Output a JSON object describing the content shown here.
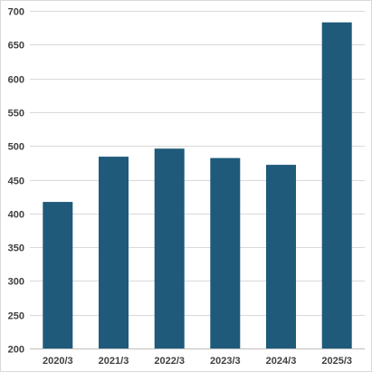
{
  "chart_data": {
    "type": "bar",
    "categories": [
      "2020/3",
      "2021/3",
      "2022/3",
      "2023/3",
      "2024/3",
      "2025/3"
    ],
    "values": [
      417,
      484,
      496,
      482,
      472,
      683
    ],
    "ylim": [
      200,
      700
    ],
    "yticks": [
      200,
      250,
      300,
      350,
      400,
      450,
      500,
      550,
      600,
      650,
      700
    ],
    "title": "",
    "xlabel": "",
    "ylabel": "",
    "grid": true,
    "legend": "none",
    "colors": {
      "bar": "#1f5a7a"
    }
  }
}
